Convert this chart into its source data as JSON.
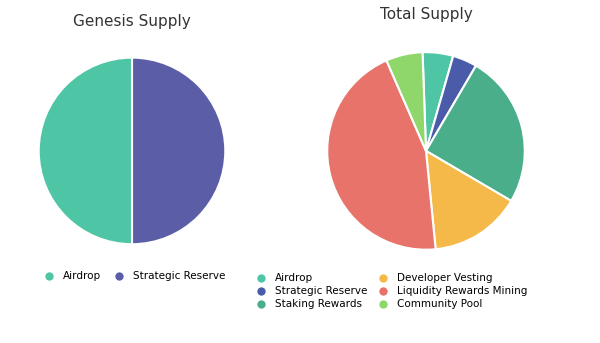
{
  "genesis_title": "Genesis Supply",
  "genesis_values": [
    50,
    50
  ],
  "genesis_colors": [
    "#5B5EA6",
    "#4EC5A5"
  ],
  "genesis_startangle": 90,
  "total_title": "Total Supply",
  "total_values_ordered": [
    5,
    4,
    25,
    15,
    45,
    6
  ],
  "total_colors_ordered": [
    "#4EC5A5",
    "#4A5BAA",
    "#4BAE8A",
    "#F5B94A",
    "#E8736B",
    "#8FD66B"
  ],
  "total_startangle": 92,
  "legend1_labels": [
    "Airdrop",
    "Strategic Reserve"
  ],
  "legend1_colors": [
    "#4EC5A5",
    "#5B5EA6"
  ],
  "legend2_col1_labels": [
    "Airdrop",
    "Staking Rewards",
    "Liquidity Rewards Mining"
  ],
  "legend2_col1_colors": [
    "#4EC5A5",
    "#4BAE8A",
    "#E8736B"
  ],
  "legend2_col2_labels": [
    "Strategic Reserve",
    "Developer Vesting",
    "Community Pool"
  ],
  "legend2_col2_colors": [
    "#4A5BAA",
    "#F5B94A",
    "#8FD66B"
  ],
  "bg_color": "#FFFFFF",
  "title_fontsize": 11,
  "legend_fontsize": 7.5
}
